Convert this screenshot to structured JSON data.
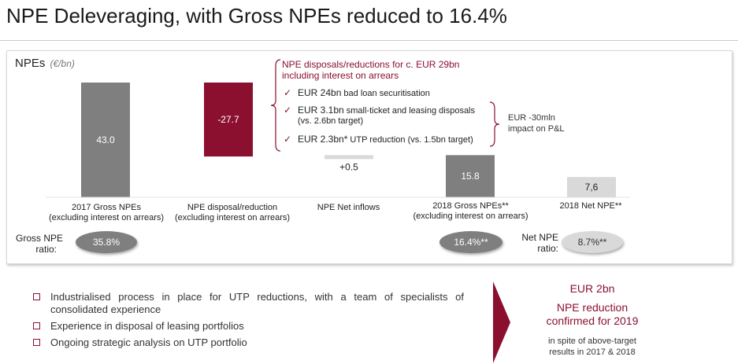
{
  "title": "NPE Deleveraging, with Gross NPEs reduced to 16.4%",
  "panel": {
    "label": "NPEs",
    "unit": "(€/bn)"
  },
  "chart_data": {
    "type": "bar",
    "subtype": "waterfall",
    "title": "NPEs (€/bn)",
    "categories": [
      {
        "line1": "2017 Gross NPEs",
        "line2": "(excluding interest on arrears)"
      },
      {
        "line1": "NPE disposal/reduction",
        "line2": "(excluding interest on arrears)"
      },
      {
        "line1": "NPE Net inflows",
        "line2": ""
      },
      {
        "line1": "2018 Gross NPEs**",
        "line2": "(excluding interest on arrears)"
      },
      {
        "line1": "2018 Net NPE**",
        "line2": ""
      }
    ],
    "values": [
      43.0,
      -27.7,
      0.5,
      15.8,
      7.6
    ],
    "value_labels": [
      "43.0",
      "-27.7",
      "+0.5",
      "15.8",
      "7,6"
    ],
    "bar_colors": [
      "#7f7f7f",
      "#8b1030",
      "#d9d9d9",
      "#7f7f7f",
      "#d9d9d9"
    ],
    "label_colors": [
      "#ffffff",
      "#ffffff",
      "#222222",
      "#ffffff",
      "#222222"
    ],
    "ylim": [
      0,
      45
    ]
  },
  "ratios": {
    "gross": {
      "label_line1": "Gross NPE",
      "label_line2": "ratio:",
      "v2017": "35.8%",
      "v2018": "16.4%**"
    },
    "net": {
      "label_line1": "Net NPE",
      "label_line2": "ratio:",
      "v2018": "8.7%**"
    }
  },
  "disposals": {
    "title_line1": "NPE disposals/reductions for c. EUR 29bn",
    "title_line2": "including interest on arrears",
    "items": [
      {
        "main": "EUR 24bn",
        "rest": " bad loan securitisation",
        "sub": ""
      },
      {
        "main": "EUR 3.1bn",
        "rest": " small-ticket and leasing disposals",
        "sub": "(vs. 2.6bn target)"
      },
      {
        "main": "EUR 2.3bn*",
        "rest": " UTP reduction (vs. 1.5bn target)",
        "sub": ""
      }
    ],
    "side_note_line1": "EUR -30mln",
    "side_note_line2": "impact on P&L"
  },
  "bullets": [
    "Industrialised process in place for UTP reductions, with a team of specialists of consolidated experience",
    "Experience in disposal of leasing portfolios",
    "Ongoing strategic analysis on UTP portfolio"
  ],
  "highlight": {
    "line1": "EUR 2bn",
    "line2a": "NPE reduction",
    "line2b": "confirmed for 2019",
    "note_line1": "in spite of above-target",
    "note_line2": "results in 2017 & 2018"
  }
}
